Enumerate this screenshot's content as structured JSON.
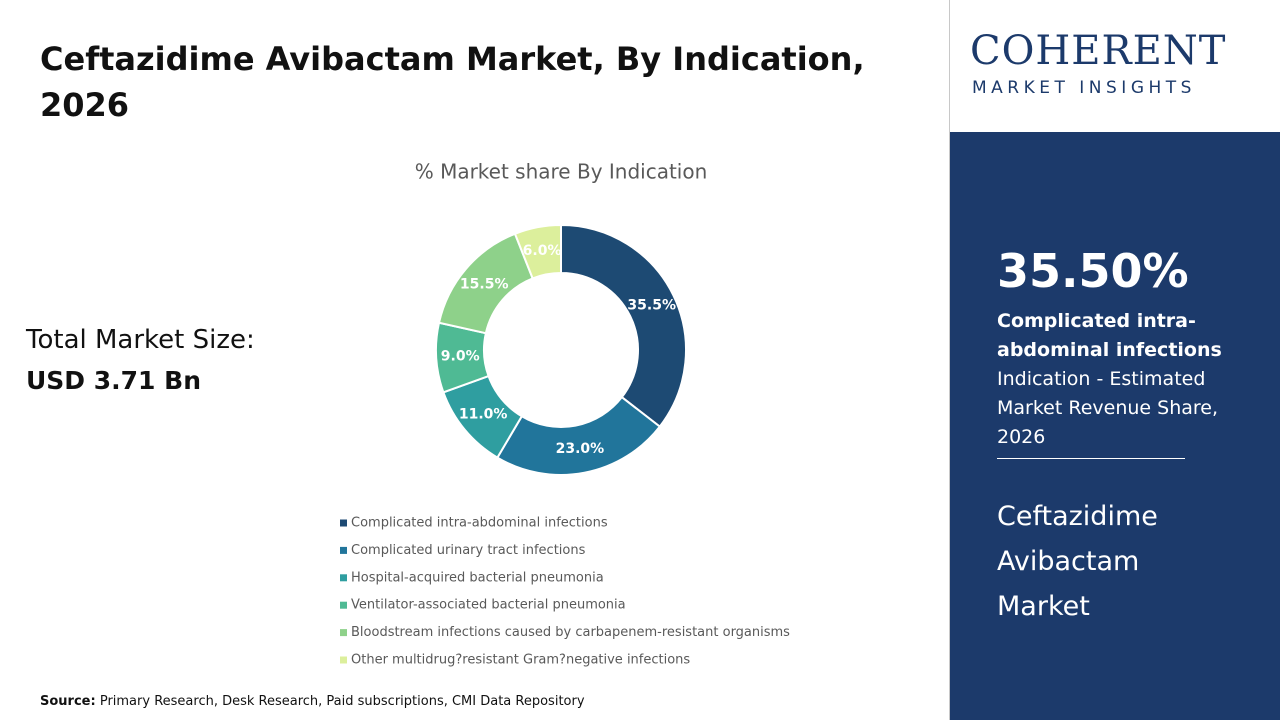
{
  "header": {
    "title": "Ceftazidime Avibactam Market, By Indication, 2026"
  },
  "market_size": {
    "label": "Total Market Size:",
    "value": "USD 3.71 Bn"
  },
  "chart_data": {
    "type": "donut",
    "title": "% Market share By Indication",
    "categories": [
      "Complicated intra-abdominal infections",
      "Complicated urinary tract infections",
      "Hospital-acquired bacterial pneumonia",
      "Ventilator-associated bacterial pneumonia",
      "Bloodstream infections caused by carbapenem-resistant organisms",
      "Other multidrug?resistant Gram?negative infections"
    ],
    "values": [
      35.5,
      23.0,
      11.0,
      9.0,
      15.5,
      6.0
    ],
    "value_labels": [
      "35.5%",
      "23.0%",
      "11.0%",
      "9.0%",
      "15.5%",
      "6.0%"
    ],
    "colors": [
      "#1d4a73",
      "#21759b",
      "#2f9ea0",
      "#4fba94",
      "#8ed18a",
      "#dcef9c"
    ]
  },
  "logo": {
    "name": "COHERENT",
    "tagline": "MARKET INSIGHTS"
  },
  "highlight": {
    "value": "35.50%",
    "segment": "Complicated intra-abdominal infections",
    "description": "Indication - Estimated Market Revenue Share, 2026",
    "market": "Ceftazidime Avibactam Market"
  },
  "source": {
    "label": "Source:",
    "text": "Primary Research, Desk Research, Paid subscriptions, CMI Data Repository"
  }
}
